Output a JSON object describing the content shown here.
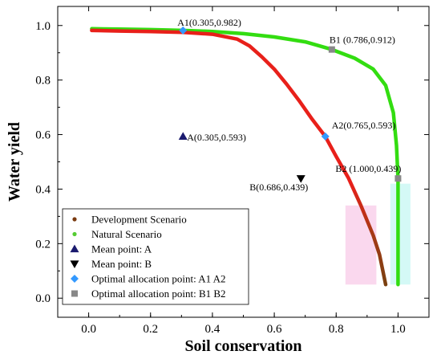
{
  "chart_data": {
    "type": "line",
    "xlabel": "Soil conservation",
    "ylabel": "Water yield",
    "xlim": [
      -0.1,
      1.1
    ],
    "ylim": [
      -0.07,
      1.07
    ],
    "x_ticks": [
      0.0,
      0.2,
      0.4,
      0.6,
      0.8,
      1.0
    ],
    "y_ticks": [
      0.0,
      0.2,
      0.4,
      0.6,
      0.8,
      1.0
    ],
    "x_tick_labels": [
      "0.0",
      "0.2",
      "0.4",
      "0.6",
      "0.8",
      "1.0"
    ],
    "y_tick_labels": [
      "0.0",
      "0.2",
      "0.4",
      "0.6",
      "0.8",
      "1.0"
    ],
    "legend_position": "bottom-left",
    "series": [
      {
        "name": "Development Scenario",
        "color": "#e8201a",
        "x": [
          0.01,
          0.1,
          0.2,
          0.305,
          0.4,
          0.48,
          0.52,
          0.56,
          0.6,
          0.64,
          0.68,
          0.72,
          0.765,
          0.8,
          0.84,
          0.88,
          0.92,
          0.94,
          0.96
        ],
        "y": [
          0.982,
          0.98,
          0.978,
          0.975,
          0.968,
          0.95,
          0.925,
          0.885,
          0.84,
          0.785,
          0.725,
          0.66,
          0.593,
          0.52,
          0.44,
          0.34,
          0.23,
          0.16,
          0.05
        ]
      },
      {
        "name": "Natural Scenario",
        "color": "#33dd11",
        "x": [
          0.01,
          0.1,
          0.2,
          0.305,
          0.4,
          0.5,
          0.6,
          0.7,
          0.786,
          0.86,
          0.92,
          0.96,
          0.985,
          0.995,
          1.0,
          1.0,
          1.0,
          1.0
        ],
        "y": [
          0.988,
          0.987,
          0.985,
          0.982,
          0.978,
          0.97,
          0.958,
          0.94,
          0.912,
          0.88,
          0.84,
          0.78,
          0.68,
          0.56,
          0.439,
          0.3,
          0.15,
          0.05
        ]
      }
    ],
    "mean_points": [
      {
        "name": "Mean point: A",
        "x": 0.305,
        "y": 0.593,
        "marker": "triangle-up",
        "color": "#1a1a6e",
        "label": "A(0.305,0.593)"
      },
      {
        "name": "Mean point: B",
        "x": 0.686,
        "y": 0.439,
        "marker": "triangle-down",
        "color": "#000000",
        "label": "B(0.686,0.439)"
      }
    ],
    "optimal_points": [
      {
        "group": "A",
        "x": 0.305,
        "y": 0.982,
        "label": "A1(0.305,0.982)"
      },
      {
        "group": "A",
        "x": 0.765,
        "y": 0.593,
        "label": "A2(0.765,0.593)"
      },
      {
        "group": "B",
        "x": 0.786,
        "y": 0.912,
        "label": "B1 (0.786,0.912)"
      },
      {
        "group": "B",
        "x": 1.0,
        "y": 0.439,
        "label": "B2 (1.000,0.439)"
      }
    ],
    "legend": [
      {
        "label": "Development Scenario",
        "symbol": "dot",
        "color": "#7a3a10"
      },
      {
        "label": "Natural Scenario",
        "symbol": "dot",
        "color": "#55cc33"
      },
      {
        "label": "Mean point: A",
        "symbol": "triangle-up",
        "color": "#1a1a6e"
      },
      {
        "label": "Mean point: B",
        "symbol": "triangle-down",
        "color": "#000000"
      },
      {
        "label": "Optimal allocation point: A1 A2",
        "symbol": "diamond",
        "color": "#3399ff"
      },
      {
        "label": "Optimal allocation point: B1 B2",
        "symbol": "square",
        "color": "#888888"
      }
    ]
  }
}
